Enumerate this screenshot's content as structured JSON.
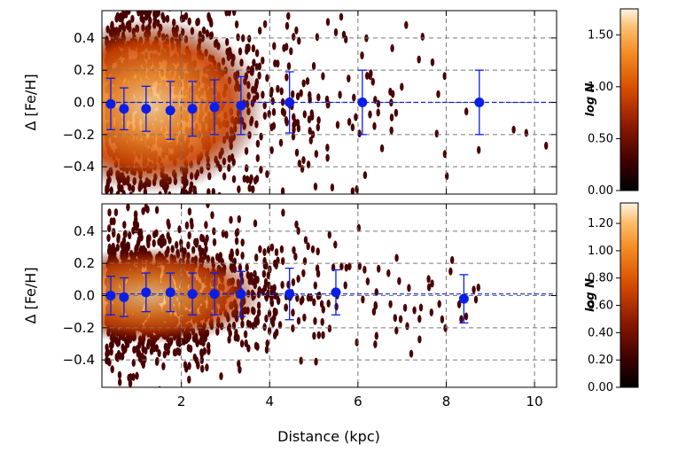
{
  "chart_data": {
    "type": "scatter",
    "x_axis": {
      "label": "Distance (kpc)",
      "range": [
        0.2,
        10.5
      ],
      "ticks": [
        2,
        4,
        6,
        8,
        10
      ],
      "tick_labels": [
        "2",
        "4",
        "6",
        "8",
        "10"
      ]
    },
    "colorbar_label": "log N",
    "accent_color": "#0a1ee6",
    "panels": [
      {
        "ylabel": "Δ [Fe/H]",
        "ylim": [
          -0.57,
          0.57
        ],
        "yticks": [
          -0.4,
          -0.2,
          0.0,
          0.2,
          0.4
        ],
        "ytick_labels": [
          "−0.4",
          "−0.2",
          "0.0",
          "0.2",
          "0.4"
        ],
        "points": [
          {
            "x": 0.4,
            "y": -0.01,
            "err": 0.16
          },
          {
            "x": 0.7,
            "y": -0.04,
            "err": 0.13
          },
          {
            "x": 1.2,
            "y": -0.04,
            "err": 0.14
          },
          {
            "x": 1.75,
            "y": -0.05,
            "err": 0.18
          },
          {
            "x": 2.25,
            "y": -0.04,
            "err": 0.17
          },
          {
            "x": 2.75,
            "y": -0.03,
            "err": 0.17
          },
          {
            "x": 3.35,
            "y": -0.02,
            "err": 0.18
          },
          {
            "x": 4.45,
            "y": 0.0,
            "err": 0.19
          },
          {
            "x": 6.1,
            "y": 0.0,
            "err": 0.2
          },
          {
            "x": 8.75,
            "y": 0.0,
            "err": 0.2
          }
        ],
        "reference_line": 0.0,
        "colorbar": {
          "ticks": [
            "0.00",
            "0.50",
            "1.00",
            "1.50"
          ],
          "values": [
            0.0,
            0.5,
            1.0,
            1.5
          ],
          "max": 1.75
        }
      },
      {
        "ylabel": "Δ [Fe/H]",
        "ylim": [
          -0.57,
          0.57
        ],
        "yticks": [
          -0.4,
          -0.2,
          0.0,
          0.2,
          0.4
        ],
        "ytick_labels": [
          "−0.4",
          "−0.2",
          "0.0",
          "0.2",
          "0.4"
        ],
        "points": [
          {
            "x": 0.4,
            "y": 0.0,
            "err": 0.12
          },
          {
            "x": 0.7,
            "y": -0.01,
            "err": 0.12
          },
          {
            "x": 1.2,
            "y": 0.02,
            "err": 0.12
          },
          {
            "x": 1.75,
            "y": 0.02,
            "err": 0.12
          },
          {
            "x": 2.25,
            "y": 0.01,
            "err": 0.13
          },
          {
            "x": 2.75,
            "y": 0.01,
            "err": 0.13
          },
          {
            "x": 3.35,
            "y": 0.01,
            "err": 0.14
          },
          {
            "x": 4.45,
            "y": 0.01,
            "err": 0.16
          },
          {
            "x": 5.5,
            "y": 0.02,
            "err": 0.14
          },
          {
            "x": 8.4,
            "y": -0.02,
            "err": 0.15
          }
        ],
        "reference_line": 0.01,
        "colorbar": {
          "ticks": [
            "0.00",
            "0.20",
            "0.40",
            "0.60",
            "0.80",
            "1.00",
            "1.20"
          ],
          "values": [
            0.0,
            0.2,
            0.4,
            0.6,
            0.8,
            1.0,
            1.2
          ],
          "max": 1.35
        }
      }
    ]
  }
}
